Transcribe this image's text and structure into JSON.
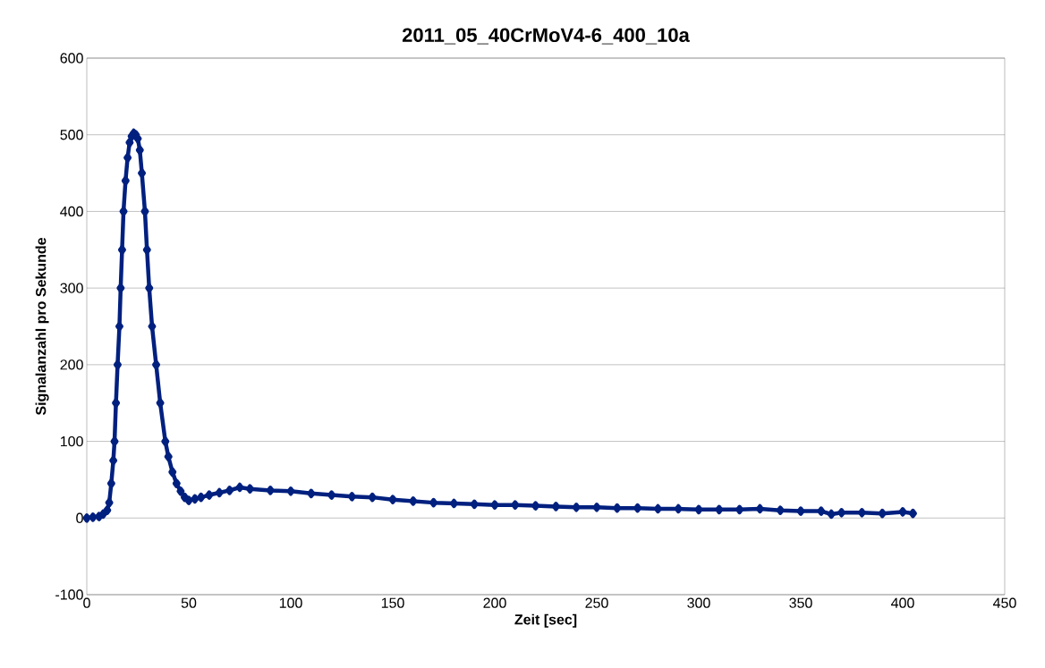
{
  "chart_data": {
    "type": "line",
    "title": "2011_05_40CrMoV4-6_400_10a",
    "xlabel": "Zeit [sec]",
    "ylabel": "Signalanzahl pro Sekunde",
    "x": [
      0,
      3,
      6,
      8,
      10,
      11,
      12,
      13,
      13.6,
      14.3,
      15.1,
      16,
      16.6,
      17.3,
      18,
      19,
      20,
      21,
      22,
      23,
      24,
      25,
      26,
      27,
      28.5,
      29.5,
      30.6,
      32,
      34,
      36,
      38.5,
      40,
      42,
      44,
      46,
      48,
      50,
      53,
      56,
      60,
      65,
      70,
      75,
      80,
      90,
      100,
      110,
      120,
      130,
      140,
      150,
      160,
      170,
      180,
      190,
      200,
      210,
      220,
      230,
      240,
      250,
      260,
      270,
      280,
      290,
      300,
      310,
      320,
      330,
      340,
      350,
      360,
      365,
      370,
      380,
      390,
      400,
      405
    ],
    "series": [
      {
        "color": "#00207f",
        "values": [
          0,
          1,
          2,
          5,
          10,
          20,
          45,
          75,
          100,
          150,
          200,
          250,
          300,
          350,
          400,
          440,
          470,
          490,
          498,
          502,
          500,
          495,
          480,
          450,
          400,
          350,
          300,
          250,
          200,
          150,
          100,
          80,
          60,
          45,
          35,
          27,
          23,
          25,
          27,
          30,
          33,
          36,
          40,
          38,
          36,
          35,
          32,
          30,
          28,
          27,
          24,
          22,
          20,
          19,
          18,
          17,
          17,
          16,
          15,
          14,
          14,
          13,
          13,
          12,
          12,
          11,
          11,
          11,
          12,
          10,
          9,
          9,
          5,
          7,
          7,
          6,
          8,
          6
        ]
      }
    ],
    "xlim": [
      0,
      450
    ],
    "ylim": [
      -100,
      600
    ],
    "xticks": [
      0,
      50,
      100,
      150,
      200,
      250,
      300,
      350,
      400,
      450
    ],
    "yticks": [
      -100,
      0,
      100,
      200,
      300,
      400,
      500,
      600
    ],
    "grid": "y",
    "marker": "diamond",
    "line_style": "solid"
  }
}
